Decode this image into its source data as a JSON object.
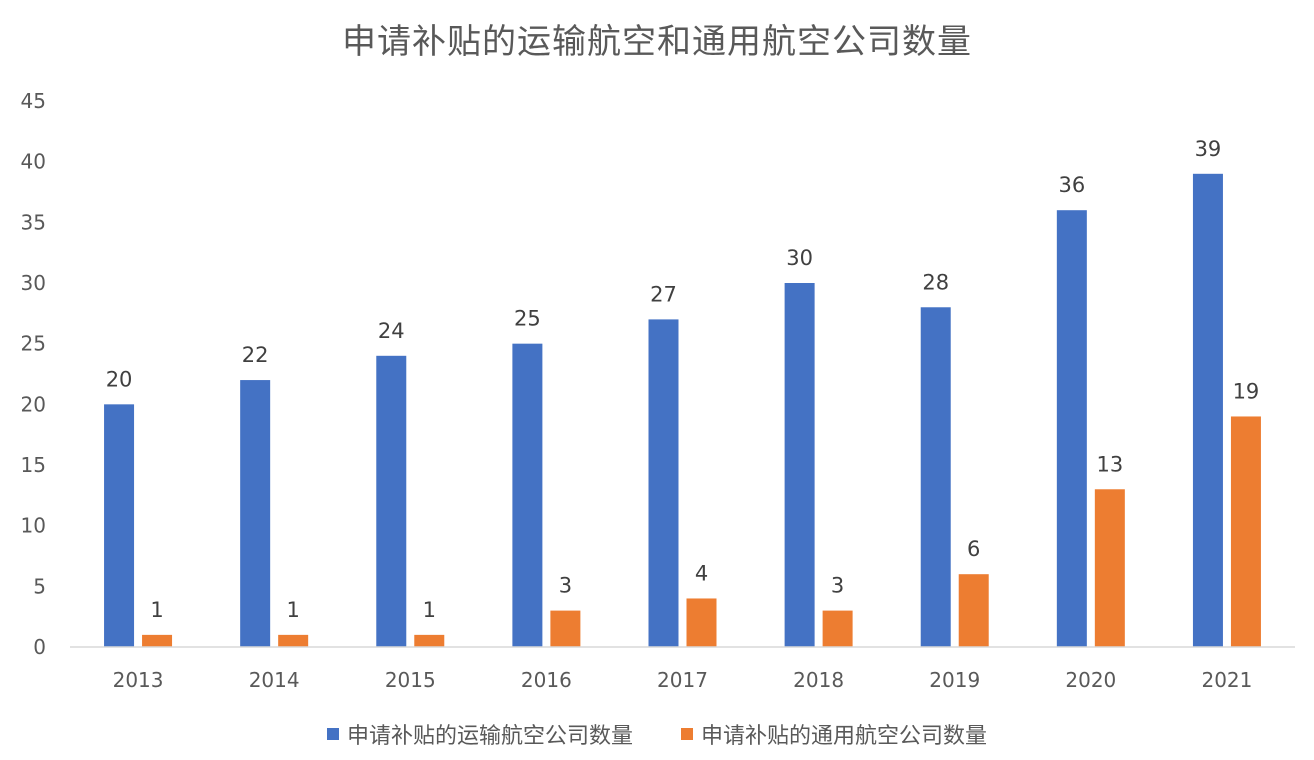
{
  "chart_data": {
    "type": "bar",
    "title": "申请补贴的运输航空和通用航空公司数量",
    "categories": [
      "2013",
      "2014",
      "2015",
      "2016",
      "2017",
      "2018",
      "2019",
      "2020",
      "2021"
    ],
    "series": [
      {
        "name": "申请补贴的运输航空公司数量",
        "color": "#4472C4",
        "values": [
          20,
          22,
          24,
          25,
          27,
          30,
          28,
          36,
          39
        ]
      },
      {
        "name": "申请补贴的通用航空公司数量",
        "color": "#ED7D31",
        "values": [
          1,
          1,
          1,
          3,
          4,
          3,
          6,
          13,
          19
        ]
      }
    ],
    "ylim": [
      0,
      45
    ],
    "yticks": [
      0,
      5,
      10,
      15,
      20,
      25,
      30,
      35,
      40,
      45
    ],
    "xlabel": "",
    "ylabel": "",
    "grid": false,
    "legend_position": "bottom",
    "data_labels": true
  }
}
